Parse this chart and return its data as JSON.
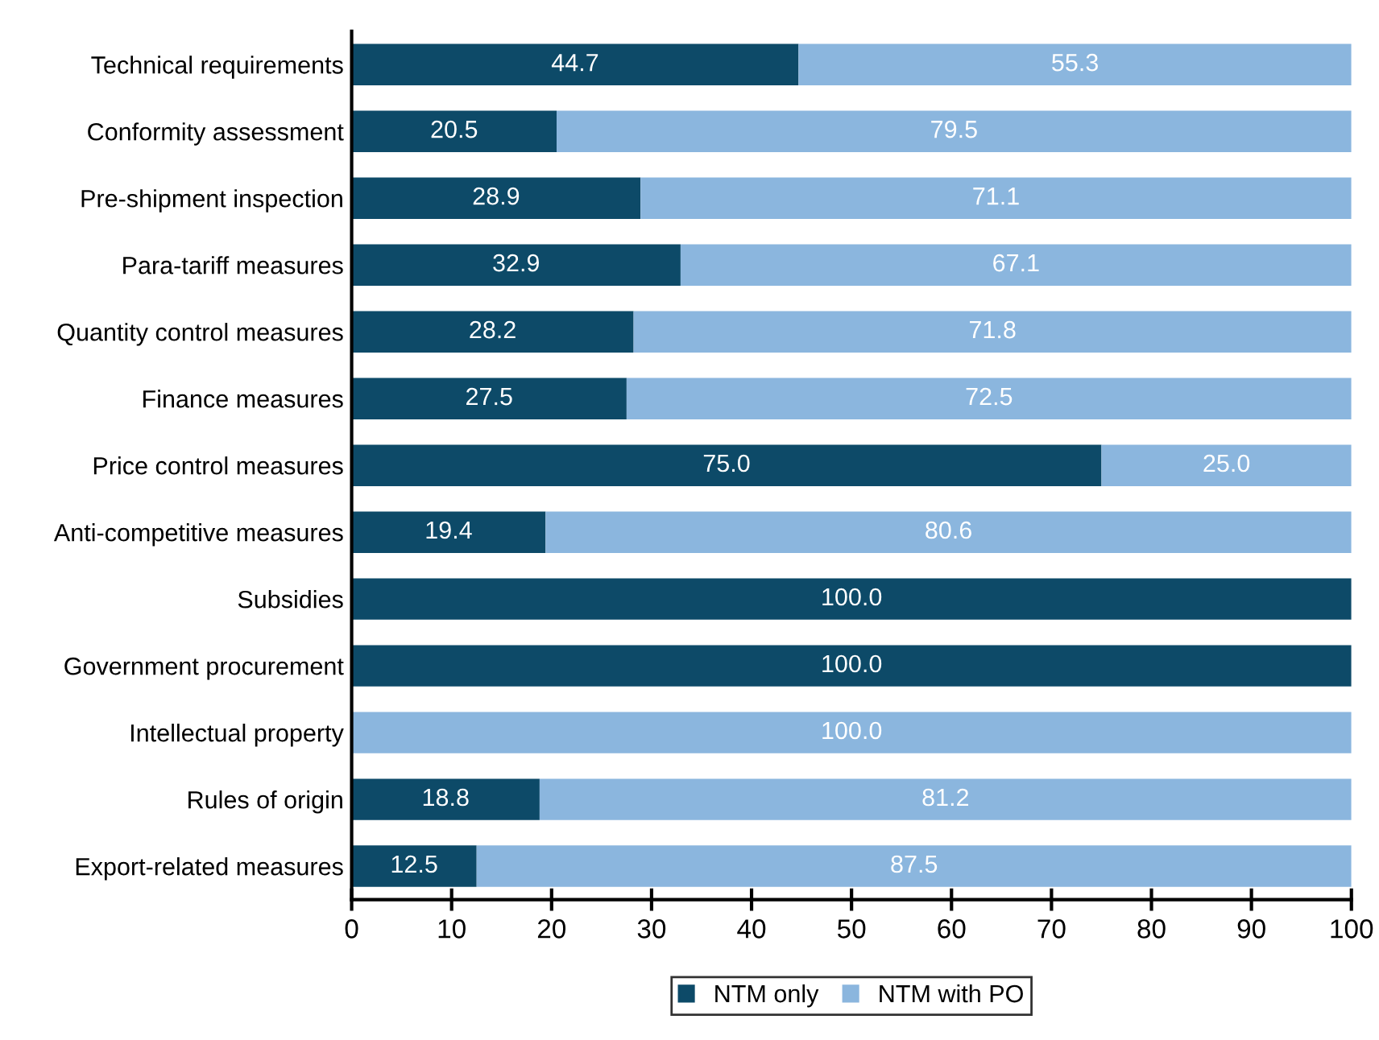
{
  "chart_data": {
    "type": "bar",
    "orientation": "horizontal",
    "stacked": true,
    "categories": [
      "Technical requirements",
      "Conformity assessment",
      "Pre-shipment inspection",
      "Para-tariff measures",
      "Quantity control measures",
      "Finance measures",
      "Price control measures",
      "Anti-competitive measures",
      "Subsidies",
      "Government procurement",
      "Intellectual property",
      "Rules of origin",
      "Export-related measures"
    ],
    "series": [
      {
        "name": "NTM only",
        "color": "#0d4a68",
        "values": [
          44.7,
          20.5,
          28.9,
          32.9,
          28.2,
          27.5,
          75.0,
          19.4,
          100.0,
          100.0,
          0,
          18.8,
          12.5
        ],
        "value_labels": [
          "44.7",
          "20.5",
          "28.9",
          "32.9",
          "28.2",
          "27.5",
          "75.0",
          "19.4",
          "100.0",
          "100.0",
          null,
          "18.8",
          "12.5"
        ]
      },
      {
        "name": "NTM with PO",
        "color": "#8bb6de",
        "values": [
          55.3,
          79.5,
          71.1,
          67.1,
          71.8,
          72.5,
          25.0,
          80.6,
          0,
          0,
          100.0,
          81.2,
          87.5
        ],
        "value_labels": [
          "55.3",
          "79.5",
          "71.1",
          "67.1",
          "71.8",
          "72.5",
          "25.0",
          "80.6",
          null,
          null,
          "100.0",
          "81.2",
          "87.5"
        ]
      }
    ],
    "xlim": [
      0,
      100
    ],
    "xticks": [
      0,
      10,
      20,
      30,
      40,
      50,
      60,
      70,
      80,
      90,
      100
    ],
    "grid": false,
    "legend": "bottom"
  }
}
